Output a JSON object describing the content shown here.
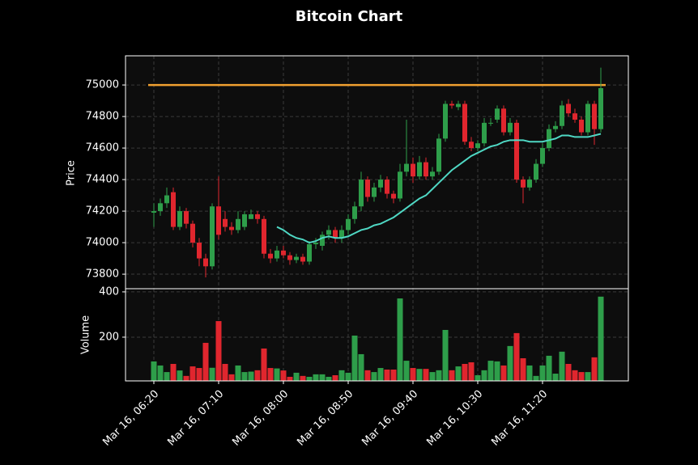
{
  "chart_data": {
    "type": "candlestick",
    "title": "Bitcoin Chart",
    "categories": [
      "Mar 16, 06:20",
      null,
      null,
      null,
      null,
      null,
      null,
      null,
      null,
      null,
      "Mar 16, 07:10",
      null,
      null,
      null,
      null,
      null,
      null,
      null,
      null,
      null,
      "Mar 16, 08:00",
      null,
      null,
      null,
      null,
      null,
      null,
      null,
      null,
      null,
      "Mar 16, 08:50",
      null,
      null,
      null,
      null,
      null,
      null,
      null,
      null,
      null,
      "Mar 16, 09:40",
      null,
      null,
      null,
      null,
      null,
      null,
      null,
      null,
      null,
      "Mar 16, 10:30",
      null,
      null,
      null,
      null,
      null,
      null,
      null,
      null,
      null,
      "Mar 16, 11:20",
      null,
      null,
      null,
      null,
      null,
      null,
      null,
      null,
      null
    ],
    "open": [
      74190,
      74200,
      74250,
      74320,
      74100,
      74200,
      74120,
      74000,
      73900,
      73850,
      74230,
      74150,
      74100,
      74080,
      74100,
      74150,
      74180,
      74150,
      73930,
      73900,
      73950,
      73920,
      73890,
      73910,
      73880,
      73990,
      73980,
      74050,
      74080,
      74030,
      74080,
      74150,
      74230,
      74400,
      74290,
      74350,
      74400,
      74310,
      74280,
      74450,
      74500,
      74420,
      74510,
      74420,
      74450,
      74660,
      74880,
      74860,
      74880,
      74640,
      74600,
      74630,
      74760,
      74780,
      74850,
      74700,
      74760,
      74400,
      74350,
      74400,
      74500,
      74600,
      74720,
      74740,
      74880,
      74820,
      74780,
      74700,
      74880,
      74720
    ],
    "high": [
      74250,
      74280,
      74350,
      74350,
      74230,
      74220,
      74140,
      74030,
      73930,
      74250,
      74420,
      74200,
      74130,
      74200,
      74200,
      74210,
      74200,
      74170,
      73960,
      73980,
      73980,
      73940,
      73930,
      73930,
      74010,
      74030,
      74070,
      74110,
      74100,
      74110,
      74180,
      74260,
      74450,
      74420,
      74380,
      74430,
      74420,
      74330,
      74500,
      74780,
      74540,
      74550,
      74540,
      74480,
      74690,
      74900,
      74900,
      74900,
      74900,
      74670,
      74650,
      74790,
      74790,
      74870,
      74870,
      74790,
      74780,
      74420,
      74420,
      74530,
      74630,
      74750,
      74770,
      74900,
      74910,
      74850,
      74800,
      74900,
      74900,
      75110
    ],
    "low": [
      74100,
      74170,
      74220,
      74080,
      74080,
      74090,
      73970,
      73850,
      73780,
      73830,
      74020,
      74070,
      74050,
      74060,
      74080,
      74150,
      74120,
      73900,
      73870,
      73880,
      73900,
      73860,
      73870,
      73860,
      73860,
      73960,
      73950,
      74020,
      74000,
      74000,
      74050,
      74120,
      74200,
      74260,
      74260,
      74320,
      74280,
      74250,
      74260,
      74420,
      74380,
      74400,
      74400,
      74400,
      74430,
      74640,
      74850,
      74840,
      74620,
      74580,
      74580,
      74610,
      74740,
      74760,
      74680,
      74680,
      74380,
      74250,
      74330,
      74380,
      74480,
      74580,
      74700,
      74720,
      74800,
      74760,
      74680,
      74680,
      74620,
      74700
    ],
    "close": [
      74200,
      74250,
      74300,
      74100,
      74200,
      74120,
      74000,
      73900,
      73850,
      74230,
      74050,
      74100,
      74080,
      74150,
      74180,
      74180,
      74150,
      73930,
      73900,
      73950,
      73920,
      73890,
      73910,
      73880,
      73990,
      74000,
      74050,
      74080,
      74030,
      74080,
      74150,
      74230,
      74400,
      74290,
      74350,
      74400,
      74310,
      74280,
      74450,
      74500,
      74420,
      74510,
      74420,
      74450,
      74660,
      74880,
      74870,
      74880,
      74640,
      74600,
      74630,
      74760,
      74760,
      74850,
      74700,
      74760,
      74400,
      74350,
      74400,
      74500,
      74600,
      74720,
      74740,
      74870,
      74820,
      74780,
      74700,
      74880,
      74720,
      74980
    ],
    "up_color": "#2e9e4a",
    "down_color": "#e0262e",
    "ylabel": "Price",
    "ylim": [
      73708,
      75185
    ],
    "yticks": [
      73800,
      74000,
      74200,
      74400,
      74600,
      74800,
      75000
    ],
    "grid": true,
    "moving_average": {
      "color": "#4fd8c4",
      "values": [
        null,
        null,
        null,
        null,
        null,
        null,
        null,
        null,
        null,
        null,
        null,
        null,
        null,
        null,
        null,
        null,
        null,
        null,
        null,
        74100,
        74080,
        74050,
        74030,
        74020,
        74000,
        74010,
        74030,
        74040,
        74030,
        74030,
        74040,
        74060,
        74080,
        74090,
        74110,
        74120,
        74140,
        74160,
        74190,
        74220,
        74250,
        74280,
        74300,
        74340,
        74380,
        74420,
        74460,
        74490,
        74520,
        74550,
        74570,
        74590,
        74610,
        74620,
        74640,
        74650,
        74650,
        74650,
        74640,
        74640,
        74640,
        74650,
        74660,
        74680,
        74680,
        74670,
        74670,
        74670,
        74680,
        74690
      ]
    },
    "hline": {
      "value": 75000,
      "color": "#f0a030"
    },
    "volume": {
      "ylabel": "Volume",
      "values": [
        93,
        75,
        46,
        82,
        53,
        29,
        71,
        64,
        175,
        65,
        271,
        82,
        36,
        75,
        46,
        48,
        54,
        150,
        64,
        62,
        53,
        25,
        43,
        29,
        25,
        36,
        36,
        25,
        32,
        54,
        43,
        207,
        125,
        54,
        46,
        64,
        57,
        57,
        371,
        96,
        64,
        60,
        60,
        46,
        54,
        232,
        54,
        71,
        82,
        89,
        32,
        54,
        96,
        93,
        75,
        161,
        218,
        107,
        75,
        29,
        75,
        118,
        39,
        136,
        82,
        54,
        46,
        46,
        111,
        379
      ],
      "ylim": [
        7,
        414
      ],
      "yticks": [
        200,
        400
      ]
    }
  }
}
